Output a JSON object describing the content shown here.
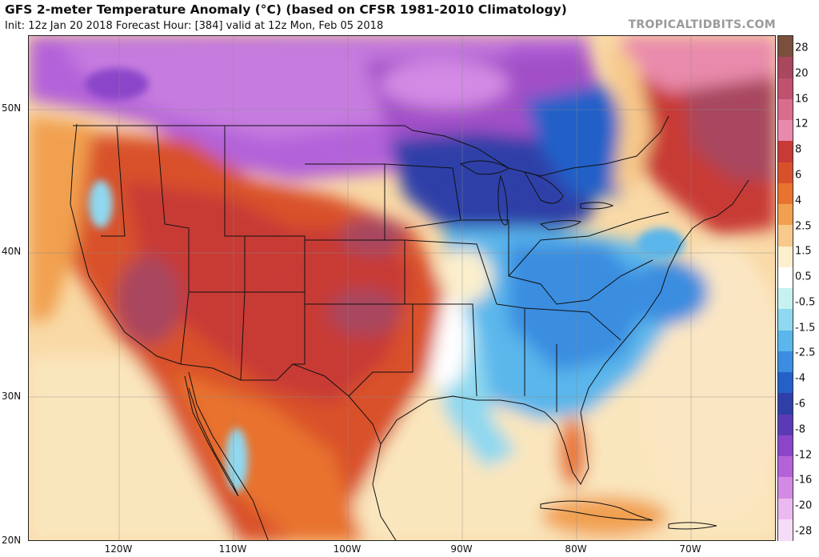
{
  "header": {
    "title": "GFS 2-meter Temperature Anomaly (°C) (based on CFSR 1981-2010 Climatology)",
    "subtitle": "Init: 12z Jan 20 2018   Forecast Hour: [384]   valid at 12z Mon, Feb 05 2018",
    "watermark": "TROPICALTIDBITS.COM"
  },
  "map": {
    "lat_labels": [
      "50N",
      "40N",
      "30N",
      "20N"
    ],
    "lon_labels": [
      "120W",
      "110W",
      "100W",
      "90W",
      "80W",
      "70W"
    ]
  },
  "colorbar": {
    "labels": [
      "28",
      "20",
      "16",
      "12",
      "8",
      "6",
      "4",
      "2.5",
      "1.5",
      "0.5",
      "-0.5",
      "-1.5",
      "-2.5",
      "-4",
      "-6",
      "-8",
      "-12",
      "-16",
      "-20",
      "-28"
    ],
    "colors": [
      "#7a4f3c",
      "#a8475e",
      "#c0526f",
      "#d86d8e",
      "#e98aac",
      "#c83a35",
      "#d9512b",
      "#e8722f",
      "#f1a04f",
      "#f7c98b",
      "#fbefce",
      "#ffffff",
      "#c5f2f1",
      "#8fd8ef",
      "#5ab6eb",
      "#3a8de0",
      "#2460c8",
      "#2f3fa8",
      "#5b3ab6",
      "#8a45c9",
      "#b462d9",
      "#d38ae4",
      "#eab9ef",
      "#f6dcf7"
    ]
  }
}
